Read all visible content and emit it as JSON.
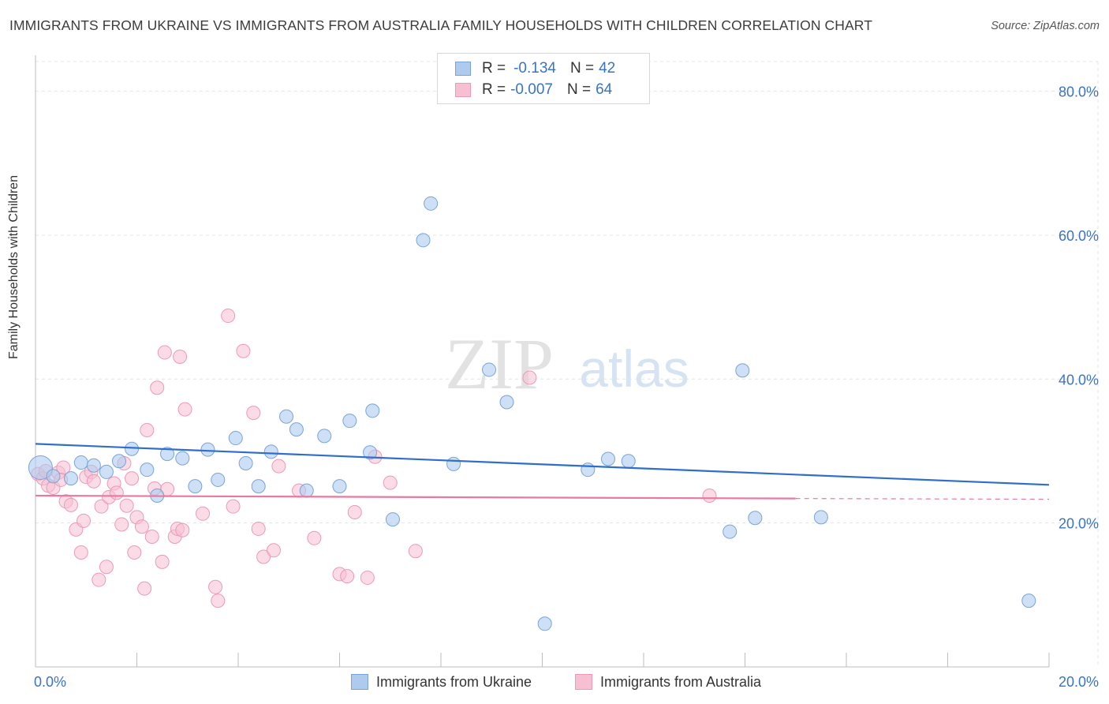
{
  "title": "IMMIGRANTS FROM UKRAINE VS IMMIGRANTS FROM AUSTRALIA FAMILY HOUSEHOLDS WITH CHILDREN CORRELATION CHART",
  "source": "Source: ZipAtlas.com",
  "watermark": {
    "zip": "ZIP",
    "atlas": "atlas"
  },
  "legend": {
    "ukraine": {
      "r_label": "R =",
      "r_value": "-0.134",
      "n_label": "N =",
      "n_value": "42"
    },
    "australia": {
      "r_label": "R =",
      "r_value": "-0.007",
      "n_label": "N =",
      "n_value": "64"
    }
  },
  "colors": {
    "ukraine_fill": "#aecbef",
    "ukraine_stroke": "#7aa4d8",
    "ukraine_line": "#2f6fcb",
    "australia_fill": "#f7c0d2",
    "australia_stroke": "#ec9ab5",
    "australia_line": "#e8799f",
    "tick_label": "#3a73c6",
    "grid": "#e4e4e4"
  },
  "chart_data": {
    "type": "scatter",
    "title": "IMMIGRANTS FROM UKRAINE VS IMMIGRANTS FROM AUSTRALIA FAMILY HOUSEHOLDS WITH CHILDREN CORRELATION CHART",
    "xlabel": "",
    "ylabel": "Family Households with Children",
    "xlim": [
      0,
      20
    ],
    "ylim": [
      0,
      85
    ],
    "x_tick_labels": [
      "0.0%",
      "20.0%"
    ],
    "y_ticks": [
      20,
      40,
      60,
      80
    ],
    "y_tick_labels": [
      "20.0%",
      "40.0%",
      "60.0%",
      "80.0%"
    ],
    "series": [
      {
        "name": "Immigrants from Ukraine",
        "r": -0.134,
        "n": 42,
        "trend": {
          "x": [
            0,
            20
          ],
          "y": [
            31.0,
            25.3
          ]
        },
        "points": [
          [
            0.1,
            27.7
          ],
          [
            0.35,
            26.5
          ],
          [
            0.7,
            26.2
          ],
          [
            0.9,
            28.4
          ],
          [
            1.15,
            28.0
          ],
          [
            1.4,
            27.1
          ],
          [
            1.65,
            28.6
          ],
          [
            1.9,
            30.3
          ],
          [
            2.2,
            27.4
          ],
          [
            2.4,
            23.8
          ],
          [
            2.6,
            29.6
          ],
          [
            2.9,
            29.0
          ],
          [
            3.15,
            25.1
          ],
          [
            3.4,
            30.2
          ],
          [
            3.6,
            26.0
          ],
          [
            3.95,
            31.8
          ],
          [
            4.15,
            28.3
          ],
          [
            4.4,
            25.1
          ],
          [
            4.65,
            29.9
          ],
          [
            4.95,
            34.8
          ],
          [
            5.15,
            33.0
          ],
          [
            5.35,
            24.5
          ],
          [
            5.7,
            32.1
          ],
          [
            6.0,
            25.1
          ],
          [
            6.2,
            34.2
          ],
          [
            6.6,
            29.8
          ],
          [
            6.65,
            35.6
          ],
          [
            7.05,
            20.5
          ],
          [
            7.65,
            59.3
          ],
          [
            7.8,
            64.4
          ],
          [
            8.25,
            28.2
          ],
          [
            8.95,
            41.3
          ],
          [
            9.3,
            36.8
          ],
          [
            10.05,
            6.0
          ],
          [
            10.9,
            27.4
          ],
          [
            11.3,
            28.9
          ],
          [
            11.7,
            28.6
          ],
          [
            13.7,
            18.8
          ],
          [
            13.95,
            41.2
          ],
          [
            14.2,
            20.7
          ],
          [
            15.5,
            20.8
          ],
          [
            19.6,
            9.2
          ]
        ]
      },
      {
        "name": "Immigrants from Australia",
        "r": -0.007,
        "n": 64,
        "trend": {
          "x": [
            0,
            15
          ],
          "y": [
            23.8,
            23.4
          ]
        },
        "trend_dashed": {
          "x": [
            15,
            20
          ],
          "y": [
            23.4,
            23.3
          ]
        },
        "points": [
          [
            0.05,
            26.8
          ],
          [
            0.15,
            26.2
          ],
          [
            0.25,
            25.2
          ],
          [
            0.35,
            24.9
          ],
          [
            0.45,
            27.0
          ],
          [
            0.55,
            27.7
          ],
          [
            0.6,
            23.0
          ],
          [
            0.7,
            22.5
          ],
          [
            0.8,
            19.1
          ],
          [
            0.9,
            15.9
          ],
          [
            0.95,
            20.3
          ],
          [
            1.0,
            26.4
          ],
          [
            1.1,
            27.1
          ],
          [
            1.15,
            25.8
          ],
          [
            1.25,
            12.1
          ],
          [
            1.3,
            22.3
          ],
          [
            1.4,
            13.9
          ],
          [
            1.45,
            23.6
          ],
          [
            1.55,
            25.5
          ],
          [
            1.6,
            24.2
          ],
          [
            1.7,
            19.8
          ],
          [
            1.75,
            28.3
          ],
          [
            1.8,
            22.4
          ],
          [
            1.9,
            26.2
          ],
          [
            1.95,
            15.9
          ],
          [
            2.0,
            20.8
          ],
          [
            2.1,
            19.5
          ],
          [
            2.15,
            10.9
          ],
          [
            2.2,
            32.9
          ],
          [
            2.3,
            18.1
          ],
          [
            2.35,
            24.8
          ],
          [
            2.4,
            38.8
          ],
          [
            2.5,
            14.6
          ],
          [
            2.55,
            43.7
          ],
          [
            2.6,
            24.7
          ],
          [
            2.75,
            18.1
          ],
          [
            2.8,
            19.2
          ],
          [
            2.85,
            43.1
          ],
          [
            2.9,
            19.0
          ],
          [
            2.95,
            35.8
          ],
          [
            3.3,
            21.3
          ],
          [
            3.55,
            11.1
          ],
          [
            3.6,
            9.2
          ],
          [
            3.8,
            48.8
          ],
          [
            3.9,
            22.3
          ],
          [
            4.1,
            43.9
          ],
          [
            4.3,
            35.3
          ],
          [
            4.4,
            19.2
          ],
          [
            4.5,
            15.3
          ],
          [
            4.7,
            16.2
          ],
          [
            4.8,
            27.9
          ],
          [
            5.2,
            24.5
          ],
          [
            5.5,
            17.9
          ],
          [
            6.0,
            12.9
          ],
          [
            6.15,
            12.6
          ],
          [
            6.3,
            21.5
          ],
          [
            6.55,
            12.4
          ],
          [
            6.7,
            29.2
          ],
          [
            7.0,
            25.6
          ],
          [
            7.5,
            16.1
          ],
          [
            9.75,
            40.2
          ],
          [
            13.3,
            23.8
          ],
          [
            0.2,
            27.2
          ],
          [
            0.5,
            26.0
          ]
        ]
      }
    ],
    "legend_position": "top-center"
  }
}
